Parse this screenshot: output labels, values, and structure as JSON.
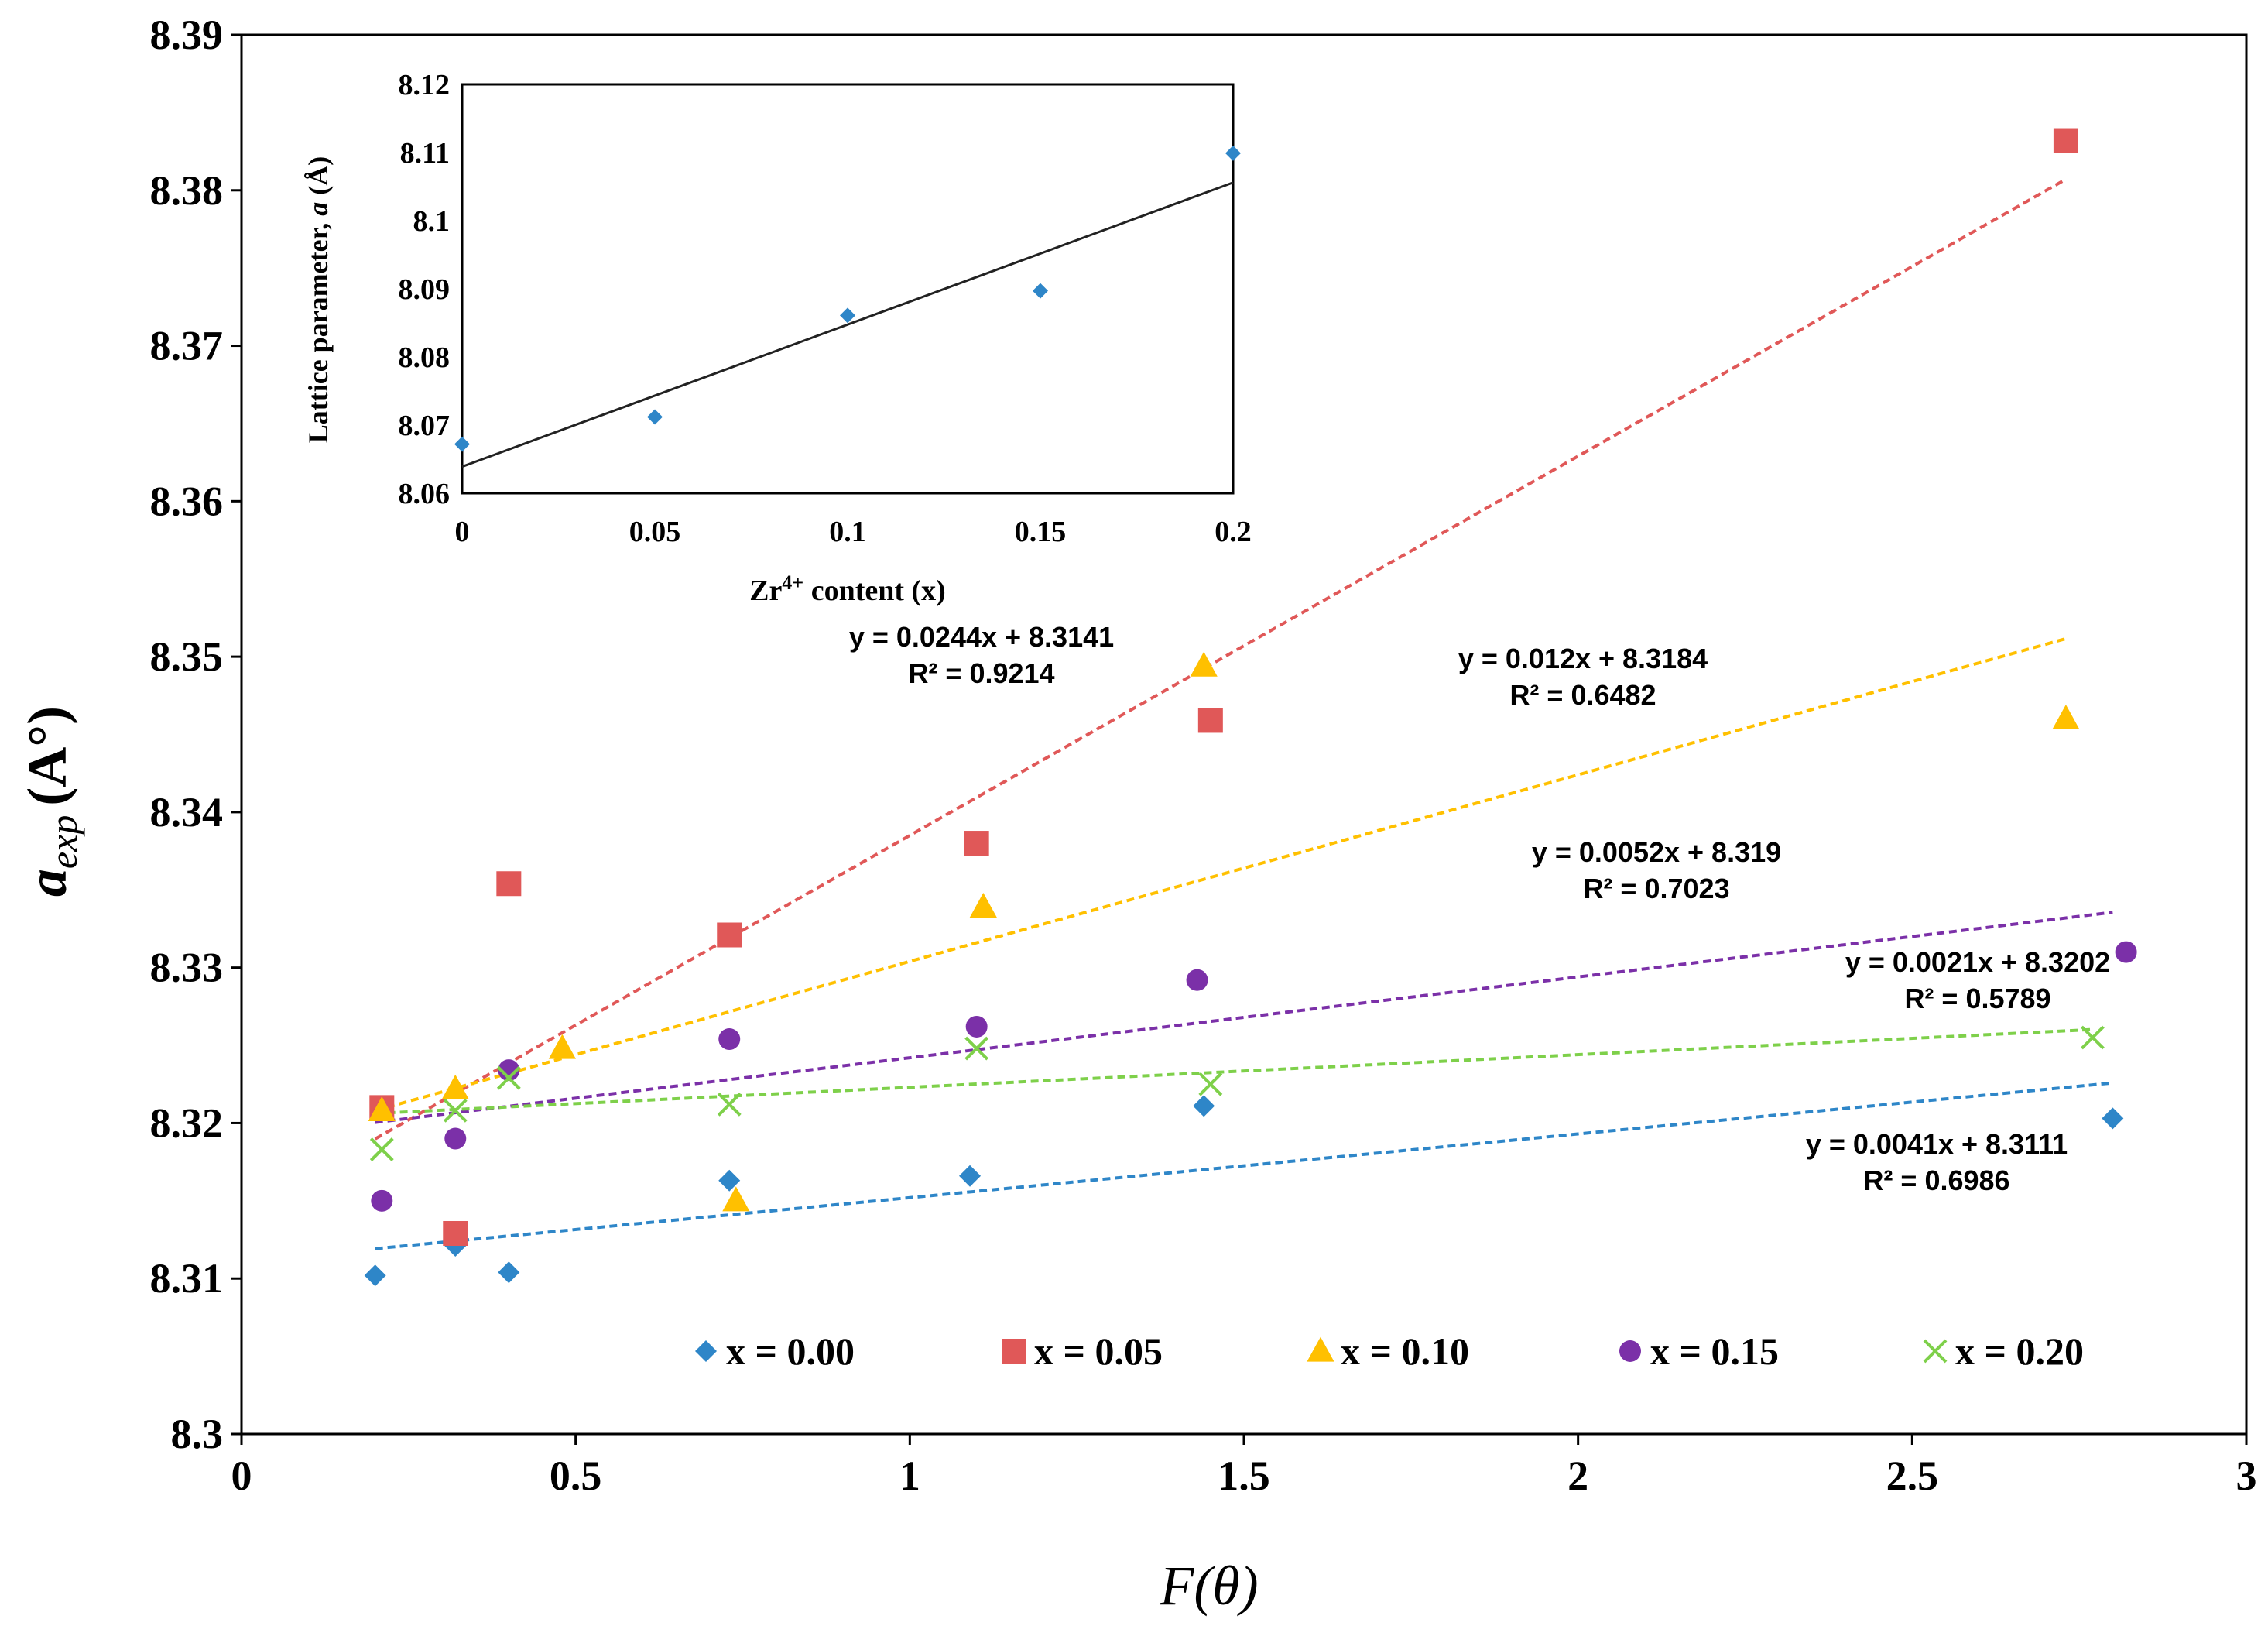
{
  "chart_data": [
    {
      "type": "scatter",
      "xlabel": "F(θ)",
      "ylabel": "a_exp (A°)",
      "xlim": [
        0,
        3
      ],
      "ylim": [
        8.3,
        8.39
      ],
      "xticks": [
        "0",
        "0.5",
        "1",
        "1.5",
        "2",
        "2.5",
        "3"
      ],
      "yticks": [
        "8.3",
        "8.31",
        "8.32",
        "8.33",
        "8.34",
        "8.35",
        "8.36",
        "8.37",
        "8.38",
        "8.39"
      ],
      "series": [
        {
          "name": "x = 0.00",
          "marker": "diamond",
          "color": "#2E86C8",
          "points": [
            [
              0.2,
              8.3102
            ],
            [
              0.32,
              8.3121
            ],
            [
              0.4,
              8.3104
            ],
            [
              0.73,
              8.3163
            ],
            [
              1.09,
              8.3166
            ],
            [
              1.44,
              8.3211
            ],
            [
              2.8,
              8.3203
            ]
          ],
          "fit": {
            "slope": 0.0041,
            "intercept": 8.3111,
            "x_range": [
              0.2,
              2.8
            ],
            "equation": "y = 0.0041x + 8.3111",
            "r2": "R² = 0.6986"
          }
        },
        {
          "name": "x = 0.05",
          "marker": "square",
          "color": "#E05858",
          "points": [
            [
              0.21,
              8.321
            ],
            [
              0.32,
              8.3129
            ],
            [
              0.4,
              8.3354
            ],
            [
              0.73,
              8.3321
            ],
            [
              1.1,
              8.338
            ],
            [
              1.45,
              8.3459
            ],
            [
              2.73,
              8.3832
            ]
          ],
          "fit": {
            "slope": 0.0244,
            "intercept": 8.3141,
            "x_range": [
              0.2,
              2.73
            ],
            "equation": "y = 0.0244x + 8.3141",
            "r2": "R² = 0.9214"
          }
        },
        {
          "name": "x = 0.10",
          "marker": "triangle",
          "color": "#FFC000",
          "points": [
            [
              0.21,
              8.3208
            ],
            [
              0.32,
              8.3222
            ],
            [
              0.48,
              8.3248
            ],
            [
              0.74,
              8.315
            ],
            [
              1.11,
              8.3339
            ],
            [
              1.44,
              8.3494
            ],
            [
              2.73,
              8.346
            ]
          ],
          "fit": {
            "slope": 0.012,
            "intercept": 8.3184,
            "x_range": [
              0.2,
              2.73
            ],
            "equation": "y = 0.012x + 8.3184",
            "r2": "R² = 0.6482"
          }
        },
        {
          "name": "x = 0.15",
          "marker": "circle",
          "color": "#7B30A8",
          "points": [
            [
              0.21,
              8.315
            ],
            [
              0.32,
              8.319
            ],
            [
              0.4,
              8.3234
            ],
            [
              0.73,
              8.3254
            ],
            [
              1.1,
              8.3262
            ],
            [
              1.43,
              8.3292
            ],
            [
              2.82,
              8.331
            ]
          ],
          "fit": {
            "slope": 0.0052,
            "intercept": 8.319,
            "x_range": [
              0.2,
              2.8
            ],
            "equation": "y = 0.0052x + 8.319",
            "r2": "R² = 0.7023"
          }
        },
        {
          "name": "x = 0.20",
          "marker": "x",
          "color": "#7ED04A",
          "points": [
            [
              0.21,
              8.3183
            ],
            [
              0.32,
              8.3208
            ],
            [
              0.4,
              8.3229
            ],
            [
              0.73,
              8.3212
            ],
            [
              1.1,
              8.3248
            ],
            [
              1.45,
              8.3225
            ],
            [
              2.77,
              8.3255
            ]
          ],
          "fit": {
            "slope": 0.0021,
            "intercept": 8.3202,
            "x_range": [
              0.2,
              2.77
            ],
            "equation": "y = 0.0021x + 8.3202",
            "r2": "R² = 0.5789"
          }
        }
      ]
    },
    {
      "type": "scatter",
      "xlabel": "Zr4+ content (x)",
      "ylabel": "Lattice parameter, a (Å)",
      "xlim": [
        0,
        0.2
      ],
      "ylim": [
        8.06,
        8.12
      ],
      "xticks": [
        "0",
        "0.05",
        "0.1",
        "0.15",
        "0.2"
      ],
      "yticks": [
        "8.06",
        "8.07",
        "8.08",
        "8.09",
        "8.1",
        "8.11",
        "8.12"
      ],
      "points": [
        [
          0,
          8.0672
        ],
        [
          0.05,
          8.0712
        ],
        [
          0.1,
          8.0861
        ],
        [
          0.15,
          8.0897
        ],
        [
          0.2,
          8.1099
        ]
      ],
      "fit": {
        "slope": 0.2085,
        "intercept": 8.0639,
        "x_range": [
          0,
          0.2
        ]
      },
      "marker_color": "#2E86C8"
    }
  ],
  "equation_positions_note": "",
  "labels": {
    "main_xlabel": "F(θ)",
    "main_ylabel_base": "a",
    "main_ylabel_sub": "exp",
    "main_ylabel_unit": "(A°)",
    "inset_xlabel_base": "Zr",
    "inset_xlabel_sup": "4+",
    "inset_xlabel_rest": " content (x)",
    "inset_ylabel_pre": "Lattice parameter, ",
    "inset_ylabel_var": "a",
    "inset_ylabel_post": " (Å)"
  }
}
